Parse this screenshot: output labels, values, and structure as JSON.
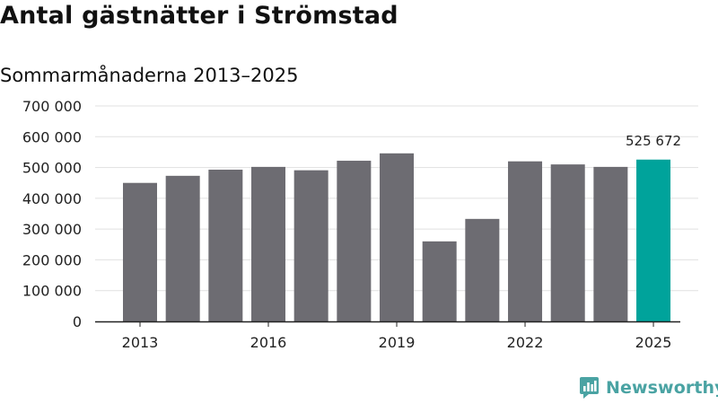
{
  "header": {
    "title": "Antal gästnätter i Strömstad",
    "subtitle": "Sommarmånaderna 2013–2025"
  },
  "brand": {
    "name": "Newsworthy",
    "icon": "newsworthy-logo-icon",
    "color": "#4aa3a3"
  },
  "colors": {
    "bar": "#6d6c72",
    "highlight": "#00a39b",
    "grid": "#e1e1e1",
    "axis": "#222222"
  },
  "chart_data": {
    "type": "bar",
    "title": "Antal gästnätter i Strömstad",
    "subtitle": "Sommarmånaderna 2013–2025",
    "xlabel": "",
    "ylabel": "",
    "categories": [
      "2013",
      "2014",
      "2015",
      "2016",
      "2017",
      "2018",
      "2019",
      "2020",
      "2021",
      "2022",
      "2023",
      "2024",
      "2025"
    ],
    "values": [
      450000,
      473000,
      493000,
      502000,
      491000,
      522000,
      546000,
      260000,
      333000,
      520000,
      510000,
      502000,
      525672
    ],
    "highlight_index": 12,
    "data_labels": [
      {
        "index": 12,
        "text": "525 672"
      }
    ],
    "x_tick_labels": [
      "2013",
      "2016",
      "2019",
      "2022",
      "2025"
    ],
    "ylim": [
      0,
      700000
    ],
    "yticks": [
      0,
      100000,
      200000,
      300000,
      400000,
      500000,
      600000,
      700000
    ],
    "ytick_labels": [
      "0",
      "100 000",
      "200 000",
      "300 000",
      "400 000",
      "500 000",
      "600 000",
      "700 000"
    ],
    "grid": true,
    "legend": "none"
  }
}
